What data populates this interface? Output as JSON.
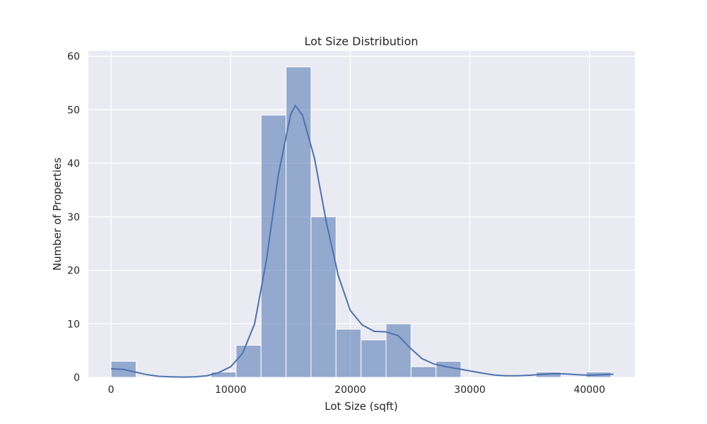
{
  "chart_data": {
    "type": "bar",
    "title": "Lot Size Distribution",
    "xlabel": "Lot Size (sqft)",
    "ylabel": "Number of Properties",
    "xlim": [
      -1900,
      43800
    ],
    "ylim": [
      0,
      61
    ],
    "xticks": [
      0,
      10000,
      20000,
      30000,
      40000
    ],
    "yticks": [
      0,
      10,
      20,
      30,
      40,
      50,
      60
    ],
    "grid": true,
    "legend": "none",
    "bar_color": "#4c72b0",
    "bar_opacity": 0.55,
    "plot_background": "#eaeaf2",
    "bins": [
      {
        "start": 0,
        "end": 2090,
        "count": 3
      },
      {
        "start": 2090,
        "end": 4180,
        "count": 0
      },
      {
        "start": 4180,
        "end": 6270,
        "count": 0
      },
      {
        "start": 6270,
        "end": 8360,
        "count": 0
      },
      {
        "start": 8360,
        "end": 10450,
        "count": 1
      },
      {
        "start": 10450,
        "end": 12540,
        "count": 6
      },
      {
        "start": 12540,
        "end": 14630,
        "count": 49
      },
      {
        "start": 14630,
        "end": 16720,
        "count": 58
      },
      {
        "start": 16720,
        "end": 18810,
        "count": 30
      },
      {
        "start": 18810,
        "end": 20900,
        "count": 9
      },
      {
        "start": 20900,
        "end": 22990,
        "count": 7
      },
      {
        "start": 22990,
        "end": 25080,
        "count": 10
      },
      {
        "start": 25080,
        "end": 27170,
        "count": 2
      },
      {
        "start": 27170,
        "end": 29260,
        "count": 3
      },
      {
        "start": 29260,
        "end": 31350,
        "count": 0
      },
      {
        "start": 31350,
        "end": 33440,
        "count": 0
      },
      {
        "start": 33440,
        "end": 35530,
        "count": 0
      },
      {
        "start": 35530,
        "end": 37620,
        "count": 1
      },
      {
        "start": 37620,
        "end": 39710,
        "count": 0
      },
      {
        "start": 39710,
        "end": 41800,
        "count": 1
      }
    ],
    "kde": {
      "color": "#4c72b0",
      "points": [
        [
          0,
          1.6
        ],
        [
          1000,
          1.5
        ],
        [
          2000,
          1.0
        ],
        [
          3000,
          0.5
        ],
        [
          4000,
          0.2
        ],
        [
          5000,
          0.1
        ],
        [
          6000,
          0.05
        ],
        [
          7000,
          0.1
        ],
        [
          8000,
          0.3
        ],
        [
          9000,
          0.9
        ],
        [
          10000,
          2.0
        ],
        [
          11000,
          4.5
        ],
        [
          12000,
          10.0
        ],
        [
          13000,
          22.0
        ],
        [
          14000,
          38.0
        ],
        [
          15000,
          49.0
        ],
        [
          15400,
          50.8
        ],
        [
          16000,
          49.0
        ],
        [
          17000,
          41.0
        ],
        [
          18000,
          29.0
        ],
        [
          19000,
          19.0
        ],
        [
          20000,
          12.5
        ],
        [
          21000,
          9.8
        ],
        [
          22000,
          8.6
        ],
        [
          23000,
          8.5
        ],
        [
          24000,
          7.8
        ],
        [
          25000,
          5.5
        ],
        [
          26000,
          3.5
        ],
        [
          27000,
          2.5
        ],
        [
          28000,
          2.0
        ],
        [
          29000,
          1.6
        ],
        [
          30000,
          1.2
        ],
        [
          31000,
          0.8
        ],
        [
          32000,
          0.45
        ],
        [
          33000,
          0.3
        ],
        [
          34000,
          0.3
        ],
        [
          35000,
          0.4
        ],
        [
          36000,
          0.55
        ],
        [
          37000,
          0.7
        ],
        [
          38000,
          0.65
        ],
        [
          39000,
          0.5
        ],
        [
          40000,
          0.4
        ],
        [
          41000,
          0.5
        ],
        [
          42000,
          0.6
        ]
      ]
    }
  }
}
